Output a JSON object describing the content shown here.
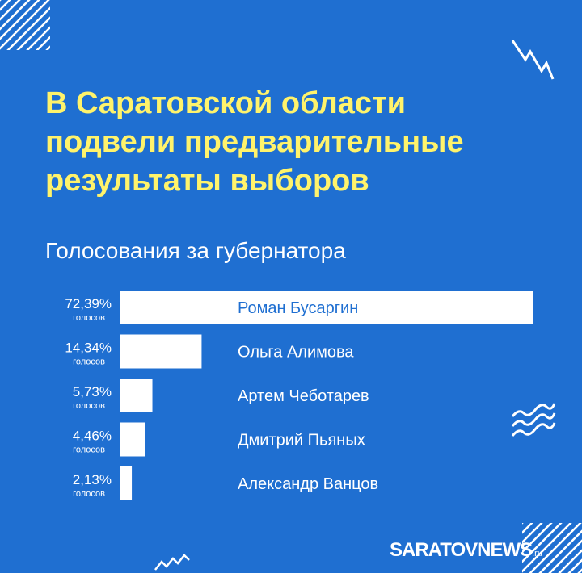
{
  "headline": {
    "lines": [
      "В Саратовской области",
      "подвели предварительные",
      "результаты выборов"
    ]
  },
  "colors": {
    "background": "#1f6fd1",
    "headline": "#fff36b",
    "bar": "#ffffff",
    "highlight_text": "#1f6fd1",
    "text": "#ffffff"
  },
  "chart_data": {
    "type": "bar",
    "orientation": "horizontal",
    "title": "Голосования за губернатора",
    "unit_label": "голосов",
    "categories": [
      "Роман Бусаргин",
      "Ольга Алимова",
      "Артем Чеботарев",
      "Дмитрий Пьяных",
      "Александр Ванцов"
    ],
    "values": [
      72.39,
      14.34,
      5.73,
      4.46,
      2.13
    ],
    "value_labels": [
      "72,39%",
      "14,34%",
      "5,73%",
      "4,46%",
      "2,13%"
    ],
    "xlim": [
      0,
      72.39
    ],
    "grid": false,
    "legend": "none"
  },
  "brand": {
    "name": "SARATOVNEWS",
    "suffix": ".ru"
  }
}
